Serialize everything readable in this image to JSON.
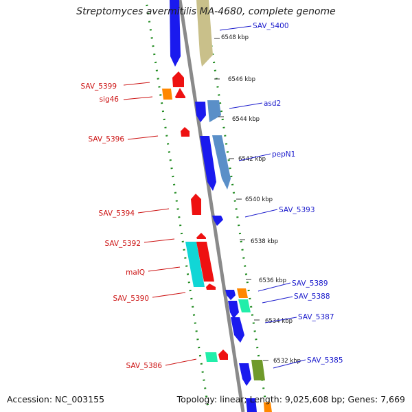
{
  "title": "Streptomyces avermitilis MA-4680, complete genome",
  "footer": {
    "accession": "Accession: NC_003155",
    "topology": "Topology: linear; Length: 9,025,608 bp; Genes: 7,669"
  },
  "colors": {
    "backbone": "#8a8a8a",
    "dots": "#1e8a1e",
    "red": "#ee1111",
    "blue": "#1a1aee",
    "orange": "#ff8800",
    "cyan": "#11d6d6",
    "steel": "#5a8fc8",
    "olive": "#c9c08a",
    "aqua": "#22eeaa",
    "green": "#6f9a2a",
    "label_red": "#cc1111",
    "label_blue": "#1a1acc"
  },
  "ticks": [
    {
      "label": "6548 kbp"
    },
    {
      "label": "6546 kbp"
    },
    {
      "label": "6544 kbp"
    },
    {
      "label": "6542 kbp"
    },
    {
      "label": "6540 kbp"
    },
    {
      "label": "6538 kbp"
    },
    {
      "label": "6536 kbp"
    },
    {
      "label": "6534 kbp"
    },
    {
      "label": "6532 kbp"
    }
  ],
  "left_labels": [
    {
      "text": "SAV_5399"
    },
    {
      "text": "sig46"
    },
    {
      "text": "SAV_5396"
    },
    {
      "text": "SAV_5394"
    },
    {
      "text": "SAV_5392"
    },
    {
      "text": "malQ"
    },
    {
      "text": "SAV_5390"
    },
    {
      "text": "SAV_5386"
    }
  ],
  "right_labels": [
    {
      "text": "SAV_5400"
    },
    {
      "text": "asd2"
    },
    {
      "text": "pepN1"
    },
    {
      "text": "SAV_5393"
    },
    {
      "text": "SAV_5389"
    },
    {
      "text": "SAV_5388"
    },
    {
      "text": "SAV_5387"
    },
    {
      "text": "SAV_5385"
    }
  ]
}
